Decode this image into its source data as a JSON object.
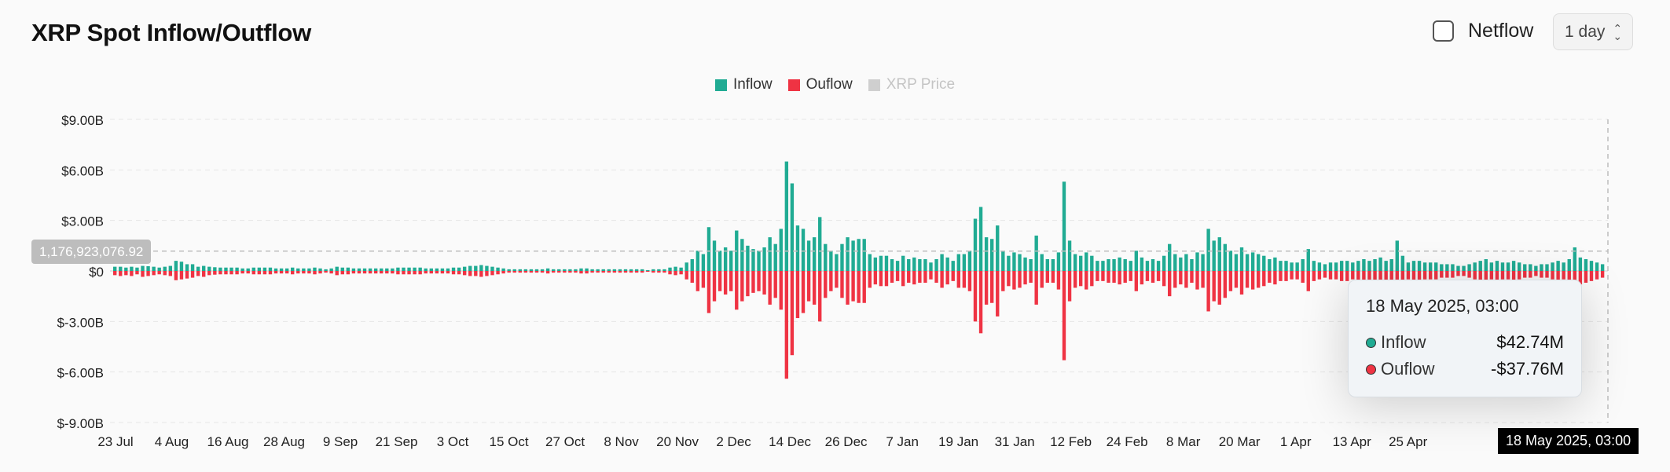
{
  "header": {
    "title": "XRP Spot Inflow/Outflow",
    "netflow_label": "Netflow",
    "netflow_checked": false,
    "period_label": "1 day"
  },
  "legend": [
    {
      "label": "Inflow",
      "color": "#20ab93",
      "active": true
    },
    {
      "label": "Ouflow",
      "color": "#ef3343",
      "active": true
    },
    {
      "label": "XRP Price",
      "color": "#cfcfcf",
      "active": false
    }
  ],
  "tooltip": {
    "date": "18 May 2025, 03:00",
    "rows": [
      {
        "name": "Inflow",
        "value": "$42.74M",
        "color": "#20ab93"
      },
      {
        "name": "Ouflow",
        "value": "-$37.76M",
        "color": "#ef3343"
      }
    ]
  },
  "crosshair": {
    "y_label": "1,176,923,076.92",
    "y_value": 1176923076.92,
    "x_label": "18 May 2025, 03:00"
  },
  "chart_data": {
    "type": "bar",
    "title": "XRP Spot Inflow/Outflow",
    "y_ticks": [
      "$9.00B",
      "$6.00B",
      "$3.00B",
      "$0",
      "$-3.00B",
      "$-6.00B",
      "$-9.00B"
    ],
    "ylim": [
      -9000000000,
      9000000000
    ],
    "x_ticks": [
      "23 Jul",
      "4 Aug",
      "16 Aug",
      "28 Aug",
      "9 Sep",
      "21 Sep",
      "3 Oct",
      "15 Oct",
      "27 Oct",
      "8 Nov",
      "20 Nov",
      "2 Dec",
      "14 Dec",
      "26 Dec",
      "7 Jan",
      "19 Jan",
      "31 Jan",
      "12 Feb",
      "24 Feb",
      "8 Mar",
      "20 Mar",
      "1 Apr",
      "13 Apr",
      "25 Apr"
    ],
    "bar_unit": "billion USD",
    "series": [
      {
        "name": "Inflow",
        "color": "#20ab93",
        "values": [
          0.25,
          0.25,
          0.2,
          0.25,
          0.2,
          0.3,
          0.28,
          0.25,
          0.2,
          0.25,
          0.3,
          0.6,
          0.55,
          0.4,
          0.4,
          0.25,
          0.3,
          0.25,
          0.22,
          0.2,
          0.2,
          0.2,
          0.2,
          0.15,
          0.15,
          0.2,
          0.2,
          0.2,
          0.2,
          0.15,
          0.15,
          0.15,
          0.2,
          0.15,
          0.15,
          0.15,
          0.2,
          0.15,
          0.1,
          0.15,
          0.25,
          0.2,
          0.2,
          0.15,
          0.15,
          0.15,
          0.15,
          0.15,
          0.15,
          0.15,
          0.15,
          0.2,
          0.2,
          0.2,
          0.2,
          0.2,
          0.15,
          0.15,
          0.15,
          0.15,
          0.15,
          0.2,
          0.2,
          0.25,
          0.3,
          0.3,
          0.35,
          0.3,
          0.25,
          0.2,
          0.15,
          0.1,
          0.1,
          0.1,
          0.1,
          0.1,
          0.1,
          0.1,
          0.15,
          0.1,
          0.1,
          0.1,
          0.1,
          0.1,
          0.15,
          0.15,
          0.1,
          0.1,
          0.1,
          0.1,
          0.1,
          0.1,
          0.1,
          0.1,
          0.1,
          0.1,
          0.05,
          0.1,
          0.1,
          0.1,
          0.2,
          0.25,
          0.2,
          0.5,
          0.7,
          1.2,
          1.0,
          2.6,
          1.8,
          1.2,
          1.4,
          1.2,
          2.4,
          1.9,
          1.5,
          1.3,
          1.2,
          1.4,
          2.0,
          1.6,
          2.5,
          6.5,
          5.2,
          2.7,
          2.5,
          1.8,
          2.0,
          3.2,
          1.6,
          1.2,
          1.0,
          1.6,
          2.0,
          1.8,
          1.9,
          1.9,
          1.0,
          0.8,
          0.9,
          0.9,
          0.7,
          0.6,
          0.9,
          0.7,
          0.8,
          0.7,
          0.7,
          0.5,
          0.7,
          1.0,
          0.8,
          0.6,
          1.0,
          1.0,
          1.2,
          3.1,
          3.8,
          2.0,
          1.9,
          2.7,
          1.2,
          0.9,
          1.1,
          1.0,
          0.8,
          0.7,
          2.1,
          1.0,
          0.7,
          0.7,
          1.1,
          5.3,
          1.8,
          1.0,
          0.9,
          1.1,
          0.9,
          0.6,
          0.6,
          0.7,
          0.7,
          0.8,
          0.7,
          0.6,
          1.2,
          0.8,
          0.6,
          0.7,
          0.6,
          0.9,
          1.6,
          1.0,
          0.8,
          1.0,
          0.7,
          1.1,
          1.0,
          2.5,
          1.8,
          2.0,
          1.6,
          1.2,
          1.0,
          1.4,
          1.0,
          1.1,
          1.0,
          0.9,
          0.7,
          0.8,
          0.6,
          0.6,
          0.5,
          0.5,
          0.7,
          1.3,
          0.6,
          0.5,
          0.4,
          0.5,
          0.5,
          0.6,
          0.6,
          0.5,
          0.6,
          0.7,
          0.6,
          0.7,
          0.8,
          0.6,
          0.7,
          1.8,
          0.9,
          0.5,
          0.6,
          0.6,
          0.5,
          0.5,
          0.5,
          0.4,
          0.4,
          0.4,
          0.3,
          0.3,
          0.4,
          0.5,
          0.6,
          0.7,
          0.5,
          0.6,
          0.5,
          0.5,
          0.6,
          0.5,
          0.4,
          0.4,
          0.3,
          0.4,
          0.4,
          0.5,
          0.6,
          0.5,
          0.7,
          1.4,
          0.8,
          0.7,
          0.6,
          0.5,
          0.4
        ]
      },
      {
        "name": "Ouflow",
        "color": "#ef3343",
        "values": [
          -0.25,
          -0.3,
          -0.25,
          -0.3,
          -0.2,
          -0.35,
          -0.3,
          -0.25,
          -0.2,
          -0.25,
          -0.3,
          -0.55,
          -0.5,
          -0.45,
          -0.4,
          -0.3,
          -0.35,
          -0.25,
          -0.22,
          -0.2,
          -0.2,
          -0.2,
          -0.2,
          -0.15,
          -0.15,
          -0.2,
          -0.2,
          -0.2,
          -0.2,
          -0.15,
          -0.15,
          -0.15,
          -0.2,
          -0.15,
          -0.15,
          -0.15,
          -0.2,
          -0.15,
          -0.1,
          -0.15,
          -0.25,
          -0.2,
          -0.2,
          -0.15,
          -0.15,
          -0.15,
          -0.15,
          -0.15,
          -0.15,
          -0.15,
          -0.15,
          -0.2,
          -0.2,
          -0.2,
          -0.2,
          -0.2,
          -0.15,
          -0.15,
          -0.15,
          -0.15,
          -0.15,
          -0.2,
          -0.2,
          -0.25,
          -0.3,
          -0.3,
          -0.35,
          -0.3,
          -0.25,
          -0.2,
          -0.15,
          -0.1,
          -0.1,
          -0.1,
          -0.1,
          -0.1,
          -0.1,
          -0.1,
          -0.15,
          -0.1,
          -0.1,
          -0.1,
          -0.1,
          -0.1,
          -0.15,
          -0.15,
          -0.1,
          -0.1,
          -0.1,
          -0.1,
          -0.1,
          -0.1,
          -0.1,
          -0.1,
          -0.1,
          -0.1,
          -0.05,
          -0.1,
          -0.1,
          -0.1,
          -0.2,
          -0.25,
          -0.2,
          -0.5,
          -0.7,
          -1.2,
          -1.0,
          -2.5,
          -1.8,
          -1.2,
          -1.4,
          -1.2,
          -2.3,
          -1.8,
          -1.5,
          -1.3,
          -1.2,
          -1.4,
          -2.0,
          -1.6,
          -2.3,
          -6.4,
          -5.0,
          -2.8,
          -2.5,
          -1.8,
          -2.0,
          -3.0,
          -1.6,
          -1.2,
          -1.0,
          -1.6,
          -2.0,
          -1.8,
          -1.9,
          -1.9,
          -1.0,
          -0.8,
          -0.9,
          -0.9,
          -0.7,
          -0.6,
          -0.9,
          -0.7,
          -0.8,
          -0.7,
          -0.7,
          -0.5,
          -0.7,
          -1.0,
          -0.8,
          -0.6,
          -1.0,
          -1.0,
          -1.2,
          -3.0,
          -3.7,
          -2.0,
          -1.9,
          -2.7,
          -1.2,
          -0.9,
          -1.1,
          -1.0,
          -0.8,
          -0.7,
          -2.0,
          -1.0,
          -0.7,
          -0.7,
          -1.1,
          -5.3,
          -1.8,
          -1.0,
          -0.9,
          -1.1,
          -0.9,
          -0.6,
          -0.6,
          -0.7,
          -0.7,
          -0.8,
          -0.7,
          -0.6,
          -1.2,
          -0.8,
          -0.6,
          -0.7,
          -0.6,
          -0.9,
          -1.5,
          -1.0,
          -0.8,
          -1.0,
          -0.7,
          -1.1,
          -1.0,
          -2.4,
          -1.8,
          -2.0,
          -1.6,
          -1.2,
          -1.0,
          -1.4,
          -1.0,
          -1.1,
          -1.0,
          -0.9,
          -0.7,
          -0.8,
          -0.6,
          -0.6,
          -0.5,
          -0.5,
          -0.7,
          -1.2,
          -0.6,
          -0.5,
          -0.4,
          -0.5,
          -0.5,
          -0.6,
          -0.6,
          -0.5,
          -0.6,
          -0.7,
          -0.6,
          -0.7,
          -0.8,
          -0.6,
          -0.7,
          -1.7,
          -0.9,
          -0.5,
          -0.6,
          -0.6,
          -0.5,
          -0.5,
          -0.5,
          -0.4,
          -0.4,
          -0.4,
          -0.3,
          -0.3,
          -0.4,
          -0.5,
          -0.6,
          -0.7,
          -0.5,
          -0.6,
          -0.5,
          -0.5,
          -0.6,
          -0.5,
          -0.4,
          -0.4,
          -0.3,
          -0.4,
          -0.4,
          -0.5,
          -0.6,
          -0.5,
          -0.7,
          -1.3,
          -0.8,
          -0.7,
          -0.6,
          -0.5,
          -0.4
        ]
      }
    ],
    "grid": true,
    "legend_position": "top-center"
  }
}
